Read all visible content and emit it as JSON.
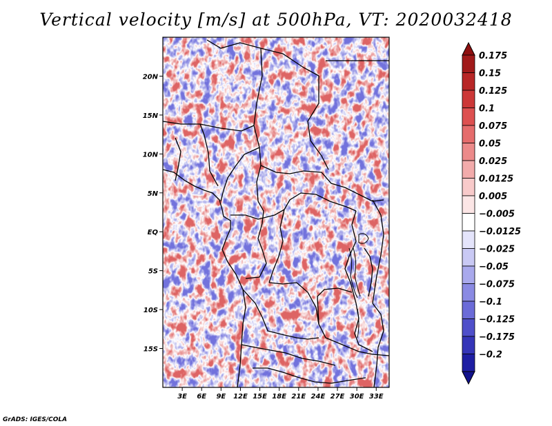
{
  "title": "Vertical velocity [m/s] at 500hPa, VT: 2020032418",
  "credit": "GrADS: IGES/COLA",
  "map": {
    "lon_range": [
      0,
      35
    ],
    "lat_range": [
      -20,
      25
    ],
    "lat_ticks": [
      {
        "value": 20,
        "label": "20N"
      },
      {
        "value": 15,
        "label": "15N"
      },
      {
        "value": 10,
        "label": "10N"
      },
      {
        "value": 5,
        "label": "5N"
      },
      {
        "value": 0,
        "label": "EQ"
      },
      {
        "value": -5,
        "label": "5S"
      },
      {
        "value": -10,
        "label": "10S"
      },
      {
        "value": -15,
        "label": "15S"
      }
    ],
    "lon_ticks": [
      {
        "value": 3,
        "label": "3E"
      },
      {
        "value": 6,
        "label": "6E"
      },
      {
        "value": 9,
        "label": "9E"
      },
      {
        "value": 12,
        "label": "12E"
      },
      {
        "value": 15,
        "label": "15E"
      },
      {
        "value": 18,
        "label": "18E"
      },
      {
        "value": 21,
        "label": "21E"
      },
      {
        "value": 24,
        "label": "24E"
      },
      {
        "value": 27,
        "label": "27E"
      },
      {
        "value": 30,
        "label": "30E"
      },
      {
        "value": 33,
        "label": "33E"
      }
    ]
  },
  "colorbar": {
    "levels": [
      {
        "label": "0.175",
        "color": "#a11a1a"
      },
      {
        "label": "0.15",
        "color": "#b82626"
      },
      {
        "label": "0.125",
        "color": "#cc3838"
      },
      {
        "label": "0.1",
        "color": "#dd5050"
      },
      {
        "label": "0.075",
        "color": "#e56c6c"
      },
      {
        "label": "0.05",
        "color": "#ec8a8a"
      },
      {
        "label": "0.025",
        "color": "#f2abab"
      },
      {
        "label": "0.0125",
        "color": "#f8caca"
      },
      {
        "label": "0.005",
        "color": "#fce6e6"
      },
      {
        "label": "−0.005",
        "color": "#ffffff"
      },
      {
        "label": "−0.0125",
        "color": "#e4e4fb"
      },
      {
        "label": "−0.025",
        "color": "#c9c9f4"
      },
      {
        "label": "−0.05",
        "color": "#a9a9ec"
      },
      {
        "label": "−0.075",
        "color": "#8a8ae3"
      },
      {
        "label": "−0.1",
        "color": "#6b6bd8"
      },
      {
        "label": "−0.125",
        "color": "#4f4fca"
      },
      {
        "label": "−0.175",
        "color": "#3535b8"
      },
      {
        "label": "−0.2",
        "color": "#1e1ea3"
      }
    ],
    "top_arrow_color": "#8e1010",
    "bottom_arrow_color": "#12128c"
  }
}
